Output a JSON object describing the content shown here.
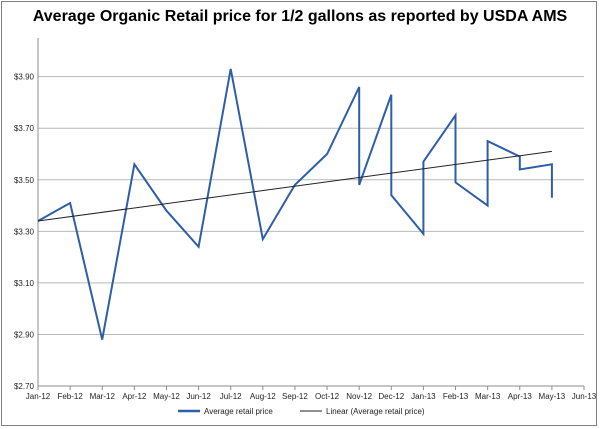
{
  "chart_data": {
    "type": "line",
    "title": "Average Organic Retail price for 1/2 gallons as reported by USDA AMS",
    "xlabel": "",
    "ylabel": "",
    "x_tick_labels": [
      "Jan-12",
      "Feb-12",
      "Mar-12",
      "Apr-12",
      "May-12",
      "Jun-12",
      "Jul-12",
      "Aug-12",
      "Sep-12",
      "Oct-12",
      "Nov-12",
      "Dec-12",
      "Jan-13",
      "Feb-13",
      "Mar-13",
      "Apr-13",
      "May-13",
      "Jun-13"
    ],
    "y_tick_labels": [
      "$2.70",
      "$2.90",
      "$3.10",
      "$3.30",
      "$3.50",
      "$3.70",
      "$3.90"
    ],
    "ylim": [
      2.7,
      4.05
    ],
    "grid": "horizontal",
    "legend_position": "bottom",
    "series": [
      {
        "name": "Average retail price",
        "color": "#2e5ea8",
        "points": [
          {
            "x": 0,
            "y": 3.34
          },
          {
            "x": 1,
            "y": 3.41
          },
          {
            "x": 2,
            "y": 2.88
          },
          {
            "x": 3,
            "y": 3.56
          },
          {
            "x": 4,
            "y": 3.38
          },
          {
            "x": 5,
            "y": 3.24
          },
          {
            "x": 6,
            "y": 3.93
          },
          {
            "x": 7,
            "y": 3.27
          },
          {
            "x": 8,
            "y": 3.48
          },
          {
            "x": 9,
            "y": 3.6
          },
          {
            "x": 10,
            "y": 3.86
          },
          {
            "x": 10,
            "y": 3.48
          },
          {
            "x": 11,
            "y": 3.83
          },
          {
            "x": 11,
            "y": 3.44
          },
          {
            "x": 12,
            "y": 3.29
          },
          {
            "x": 12,
            "y": 3.57
          },
          {
            "x": 13,
            "y": 3.75
          },
          {
            "x": 13,
            "y": 3.49
          },
          {
            "x": 14,
            "y": 3.4
          },
          {
            "x": 14,
            "y": 3.65
          },
          {
            "x": 15,
            "y": 3.59
          },
          {
            "x": 15,
            "y": 3.54
          },
          {
            "x": 16,
            "y": 3.56
          },
          {
            "x": 16,
            "y": 3.43
          }
        ]
      },
      {
        "name": "Linear (Average retail price)",
        "color": "#222222",
        "points": [
          {
            "x": 0,
            "y": 3.34
          },
          {
            "x": 16,
            "y": 3.61
          }
        ]
      }
    ]
  }
}
